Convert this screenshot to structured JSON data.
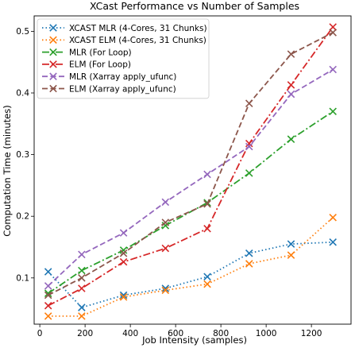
{
  "chart_data": {
    "type": "line",
    "title": "XCast Performance vs Number of Samples",
    "xlabel": "Job Intensity (samples)",
    "ylabel": "Computation Time (minutes)",
    "xlim": [
      -25,
      1375
    ],
    "ylim": [
      0.025,
      0.525
    ],
    "x_ticks": [
      0,
      200,
      400,
      600,
      800,
      1000,
      1200
    ],
    "y_ticks": [
      0.1,
      0.2,
      0.3,
      0.4,
      0.5
    ],
    "x_tick_labels": [
      "0",
      "200",
      "400",
      "600",
      "800",
      "1000",
      "1200"
    ],
    "y_tick_labels": [
      "0.1",
      "0.2",
      "0.3",
      "0.4",
      "0.5"
    ],
    "grid": false,
    "legend_position": "top-left",
    "x": [
      37,
      185,
      370,
      555,
      740,
      925,
      1110,
      1295
    ],
    "series": [
      {
        "name": "XCAST MLR (4-Cores, 31 Chunks)",
        "color": "#1f77b4",
        "dash": "dotted",
        "marker": "x",
        "values": [
          0.11,
          0.052,
          0.072,
          0.083,
          0.102,
          0.14,
          0.155,
          0.158
        ]
      },
      {
        "name": "XCAST ELM (4-Cores, 31 Chunks)",
        "color": "#ff7f0e",
        "dash": "dotted",
        "marker": "x",
        "values": [
          0.038,
          0.038,
          0.069,
          0.08,
          0.09,
          0.123,
          0.137,
          0.198
        ]
      },
      {
        "name": "MLR (For Loop)",
        "color": "#2ca02c",
        "dash": "dashdot",
        "marker": "x",
        "values": [
          0.075,
          0.112,
          0.145,
          0.185,
          0.222,
          0.27,
          0.325,
          0.37
        ]
      },
      {
        "name": "ELM (For Loop)",
        "color": "#d62728",
        "dash": "dashdot",
        "marker": "x",
        "values": [
          0.055,
          0.083,
          0.126,
          0.148,
          0.18,
          0.318,
          0.413,
          0.507
        ]
      },
      {
        "name": "MLR (Xarray apply_ufunc)",
        "color": "#9467bd",
        "dash": "dashed",
        "marker": "x",
        "values": [
          0.087,
          0.138,
          0.173,
          0.223,
          0.268,
          0.313,
          0.398,
          0.438
        ]
      },
      {
        "name": "ELM (Xarray apply_ufunc)",
        "color": "#8c564b",
        "dash": "dashed",
        "marker": "x",
        "values": [
          0.072,
          0.1,
          0.14,
          0.19,
          0.22,
          0.383,
          0.463,
          0.498
        ]
      }
    ]
  }
}
